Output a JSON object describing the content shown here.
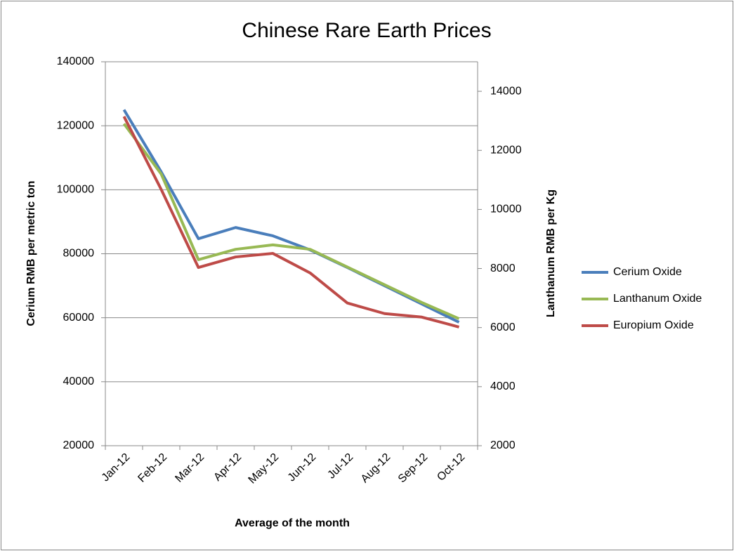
{
  "chart_data": {
    "type": "line",
    "title": "Chinese Rare Earth Prices",
    "x_label": "Average of the month",
    "y_label": "Cerium RMB per metric ton",
    "y2_label": "Lanthanum RMB per Kg",
    "categories": [
      "Jan-12",
      "Feb-12",
      "Mar-12",
      "Apr-12",
      "May-12",
      "Jun-12",
      "Jul-12",
      "Aug-12",
      "Sep-12",
      "Oct-12"
    ],
    "series": [
      {
        "name": "Cerium Oxide",
        "color": "#4a7ebb",
        "axis": "y",
        "values": [
          125000,
          105600,
          84700,
          88200,
          85600,
          81200,
          75700,
          70000,
          64300,
          58600
        ]
      },
      {
        "name": "Lanthanum Oxide",
        "color": "#98b954",
        "axis": "y2",
        "values": [
          12900,
          11200,
          8300,
          8650,
          8800,
          8650,
          8050,
          7450,
          6850,
          6300
        ]
      },
      {
        "name": "Europium Oxide",
        "color": "#be4b48",
        "axis": "y",
        "values": [
          122900,
          100100,
          75700,
          79000,
          80100,
          74000,
          64600,
          61300,
          60200,
          57100
        ]
      }
    ],
    "ylim": [
      20000,
      140000
    ],
    "yticks": [
      20000,
      40000,
      60000,
      80000,
      100000,
      120000,
      140000
    ],
    "y2lim": [
      2000,
      15000
    ],
    "y2ticks": [
      2000,
      4000,
      6000,
      8000,
      10000,
      12000,
      14000
    ],
    "grid": true,
    "legend": "right"
  }
}
